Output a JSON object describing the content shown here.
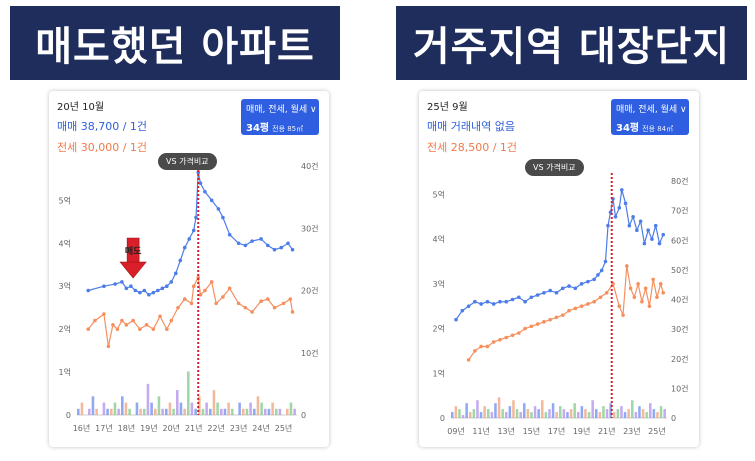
{
  "banners": {
    "left": "매도했던 아파트",
    "right": "거주지역 대장단지"
  },
  "colors": {
    "banner": "#1f2d5c",
    "sale": "#4c7de8",
    "jeonse": "#f5905e",
    "marker": "#d9202a",
    "button": "#2f5fe0"
  },
  "charts": [
    {
      "period": "20년 10월",
      "sale_text": "매매 38,700 / 1건",
      "jeonse_text": "전세 30,000 / 1건",
      "filter_line1": "매매, 전세, 월세 ∨",
      "filter_size": "34평",
      "filter_area": "전용 85㎡",
      "vs_label": "VS 가격비교",
      "arrow_label": "매도"
    },
    {
      "period": "25년 9월",
      "sale_text": "매매 거래내역 없음",
      "jeonse_text": "전세 28,500 / 1건",
      "filter_line1": "매매, 전세, 월세 ∨",
      "filter_size": "34평",
      "filter_area": "전용 84㎡",
      "vs_label": "VS 가격비교"
    }
  ],
  "chart_data": [
    {
      "type": "line",
      "x_ticks": [
        "16년",
        "17년",
        "18년",
        "19년",
        "20년",
        "21년",
        "22년",
        "23년",
        "24년",
        "25년"
      ],
      "y_left_ticks": [
        "0",
        "1억",
        "2억",
        "3억",
        "4억",
        "5억"
      ],
      "y_right_ticks": [
        "0",
        "10건",
        "20건",
        "30건",
        "40건"
      ],
      "ylim_left": [
        0,
        5.8
      ],
      "ylim_right": [
        0,
        40
      ],
      "marker_x": 21.2,
      "arrow_x": 18.3,
      "series": [
        {
          "key": "sale",
          "x": [
            16.3,
            17.0,
            17.5,
            17.8,
            18.0,
            18.2,
            18.4,
            18.6,
            18.8,
            19.0,
            19.2,
            19.4,
            19.6,
            19.8,
            20.0,
            20.2,
            20.4,
            20.6,
            20.8,
            21.0,
            21.1,
            21.2,
            21.3,
            21.5,
            21.8,
            22.1,
            22.3,
            22.6,
            23.0,
            23.3,
            23.6,
            24.0,
            24.3,
            24.6,
            24.9,
            25.2,
            25.4
          ],
          "y": [
            2.9,
            3.0,
            3.05,
            3.1,
            2.95,
            3.0,
            2.9,
            2.85,
            2.9,
            2.8,
            2.85,
            2.9,
            2.95,
            3.0,
            3.1,
            3.3,
            3.6,
            3.9,
            4.1,
            4.3,
            4.6,
            5.65,
            5.4,
            5.2,
            5.0,
            4.8,
            4.6,
            4.2,
            4.0,
            3.95,
            4.05,
            4.1,
            3.95,
            3.85,
            3.9,
            4.0,
            3.85
          ]
        },
        {
          "key": "jeonse",
          "x": [
            16.3,
            16.6,
            17.0,
            17.2,
            17.4,
            17.6,
            17.8,
            18.0,
            18.3,
            18.6,
            18.9,
            19.2,
            19.5,
            19.8,
            20.0,
            20.3,
            20.6,
            20.9,
            21.0,
            21.2,
            21.3,
            21.5,
            21.8,
            22.0,
            22.3,
            22.6,
            23.0,
            23.3,
            23.6,
            24.0,
            24.3,
            24.6,
            25.0,
            25.3,
            25.4
          ],
          "y": [
            2.0,
            2.2,
            2.35,
            1.6,
            2.1,
            2.0,
            2.2,
            2.1,
            2.2,
            2.0,
            2.1,
            2.0,
            2.3,
            2.0,
            2.2,
            2.5,
            2.7,
            2.6,
            3.0,
            3.2,
            2.8,
            2.9,
            3.1,
            2.6,
            2.75,
            2.95,
            2.6,
            2.5,
            2.4,
            2.65,
            2.7,
            2.5,
            2.6,
            2.7,
            2.4
          ]
        }
      ],
      "volume_bars": [
        1,
        2,
        0,
        1,
        3,
        1,
        0,
        2,
        1,
        1,
        2,
        1,
        3,
        2,
        1,
        0,
        2,
        1,
        1,
        5,
        2,
        1,
        3,
        1,
        1,
        2,
        1,
        4,
        2,
        1,
        7,
        2,
        1,
        3,
        1,
        2,
        1,
        4,
        2,
        1,
        1,
        2,
        1,
        0,
        2,
        1,
        1,
        2,
        1,
        3,
        2,
        1,
        1,
        2,
        1,
        1,
        0,
        1,
        2,
        1
      ]
    },
    {
      "type": "line",
      "x_ticks": [
        "09년",
        "11년",
        "13년",
        "15년",
        "17년",
        "19년",
        "21년",
        "23년",
        "25년"
      ],
      "y_left_ticks": [
        "0",
        "1억",
        "2억",
        "3억",
        "4억",
        "5억"
      ],
      "y_right_ticks": [
        "0",
        "10건",
        "20건",
        "30건",
        "40건",
        "50건",
        "60건",
        "70건",
        "80건"
      ],
      "ylim_left": [
        0,
        5.3
      ],
      "ylim_right": [
        0,
        80
      ],
      "marker_x": 21.4,
      "series": [
        {
          "key": "sale",
          "x": [
            9.0,
            9.5,
            10.0,
            10.5,
            11.0,
            11.5,
            12.0,
            12.5,
            13.0,
            13.5,
            14.0,
            14.5,
            15.0,
            15.5,
            16.0,
            16.5,
            17.0,
            17.5,
            18.0,
            18.5,
            19.0,
            19.5,
            20.0,
            20.3,
            20.6,
            20.9,
            21.1,
            21.3,
            21.5,
            21.7,
            22.0,
            22.2,
            22.5,
            22.8,
            23.1,
            23.4,
            23.7,
            24.0,
            24.3,
            24.6,
            24.9,
            25.2,
            25.5
          ],
          "y": [
            2.2,
            2.4,
            2.5,
            2.6,
            2.55,
            2.6,
            2.55,
            2.6,
            2.6,
            2.65,
            2.7,
            2.6,
            2.7,
            2.75,
            2.8,
            2.85,
            2.8,
            2.9,
            2.95,
            2.9,
            3.0,
            3.05,
            3.1,
            3.2,
            3.3,
            3.5,
            4.3,
            4.6,
            4.9,
            4.5,
            4.7,
            5.1,
            4.8,
            4.3,
            4.5,
            4.2,
            4.4,
            3.9,
            4.2,
            4.0,
            4.3,
            3.9,
            4.1
          ]
        },
        {
          "key": "jeonse",
          "x": [
            10.0,
            10.5,
            11.0,
            11.5,
            12.0,
            12.5,
            13.0,
            13.5,
            14.0,
            14.5,
            15.0,
            15.5,
            16.0,
            16.5,
            17.0,
            17.5,
            18.0,
            18.5,
            19.0,
            19.5,
            20.0,
            20.5,
            21.0,
            21.5,
            22.0,
            22.3,
            22.6,
            22.9,
            23.2,
            23.5,
            23.8,
            24.1,
            24.4,
            24.7,
            25.0,
            25.3,
            25.5
          ],
          "y": [
            1.3,
            1.5,
            1.6,
            1.6,
            1.7,
            1.75,
            1.8,
            1.85,
            1.9,
            2.0,
            2.05,
            2.1,
            2.15,
            2.2,
            2.25,
            2.3,
            2.4,
            2.45,
            2.5,
            2.55,
            2.6,
            2.7,
            2.8,
            3.0,
            2.5,
            2.3,
            3.4,
            2.9,
            2.7,
            3.0,
            2.6,
            2.9,
            2.5,
            3.1,
            2.7,
            3.0,
            2.8
          ]
        }
      ],
      "volume_bars": [
        2,
        4,
        3,
        1,
        5,
        2,
        3,
        6,
        2,
        4,
        3,
        2,
        5,
        7,
        3,
        2,
        4,
        6,
        3,
        2,
        5,
        3,
        2,
        4,
        3,
        6,
        2,
        3,
        5,
        2,
        4,
        3,
        2,
        3,
        5,
        2,
        4,
        3,
        2,
        6,
        3,
        2,
        4,
        3,
        5,
        2,
        3,
        4,
        2,
        3,
        6,
        2,
        4,
        3,
        2,
        5,
        3,
        2,
        4,
        3
      ]
    }
  ]
}
